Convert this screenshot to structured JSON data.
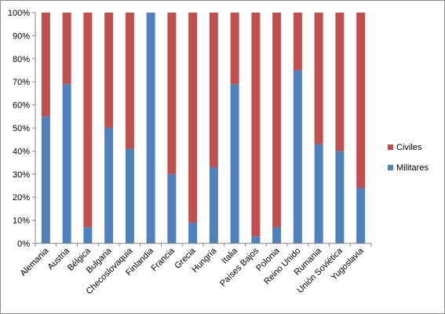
{
  "chart_data": {
    "type": "bar",
    "stacked": true,
    "percent_stacked": true,
    "categories": [
      "Alemania",
      "Austria",
      "Bélgica",
      "Bulgaria",
      "Checoslovaquia",
      "Finlandia",
      "Francia",
      "Grecia",
      "Hungría",
      "Italia",
      "Países Bajos",
      "Polonia",
      "Reino Unido",
      "Rumania",
      "Unión Soviética",
      "Yugoslavia"
    ],
    "series": [
      {
        "name": "Militares",
        "color": "#4f81bd",
        "values": [
          55,
          69,
          7,
          50,
          41,
          100,
          30,
          9,
          33,
          69,
          3,
          7,
          75,
          43,
          40,
          24
        ]
      },
      {
        "name": "Civiles",
        "color": "#c0504d",
        "values": [
          45,
          31,
          93,
          50,
          59,
          0,
          70,
          91,
          67,
          31,
          97,
          93,
          25,
          57,
          60,
          76
        ]
      }
    ],
    "title": "",
    "xlabel": "",
    "ylabel": "",
    "ylim": [
      0,
      100
    ],
    "y_ticks": [
      "0%",
      "10%",
      "20%",
      "30%",
      "40%",
      "50%",
      "60%",
      "70%",
      "80%",
      "90%",
      "100%"
    ],
    "grid": false,
    "legend_position": "right"
  }
}
